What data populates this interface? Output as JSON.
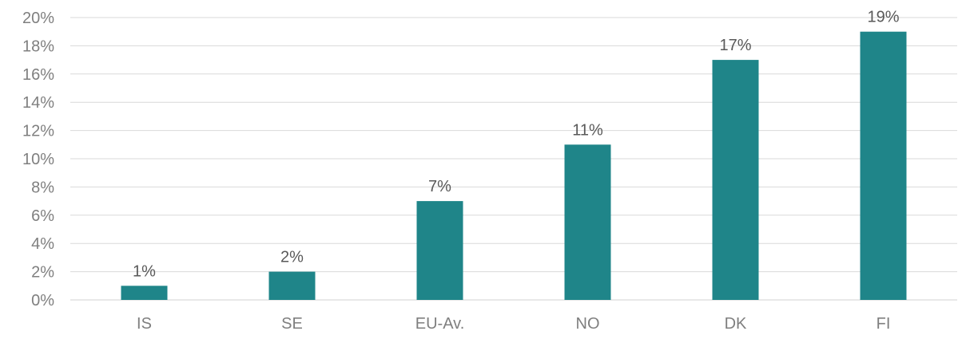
{
  "chart_data": {
    "type": "bar",
    "categories": [
      "IS",
      "SE",
      "EU-Av.",
      "NO",
      "DK",
      "FI"
    ],
    "values": [
      1,
      2,
      7,
      11,
      17,
      19
    ],
    "data_labels": [
      "1%",
      "2%",
      "7%",
      "11%",
      "17%",
      "19%"
    ],
    "title": "",
    "xlabel": "",
    "ylabel": "",
    "ylim": [
      0,
      20
    ],
    "y_ticks": [
      0,
      2,
      4,
      6,
      8,
      10,
      12,
      14,
      16,
      18,
      20
    ],
    "y_tick_labels": [
      "0%",
      "2%",
      "4%",
      "6%",
      "8%",
      "10%",
      "12%",
      "14%",
      "16%",
      "18%",
      "20%"
    ],
    "grid": true,
    "legend": "none",
    "bar_color": "#1f8589",
    "grid_color": "#d9d9d9",
    "label_color": "#7f7f7f"
  }
}
